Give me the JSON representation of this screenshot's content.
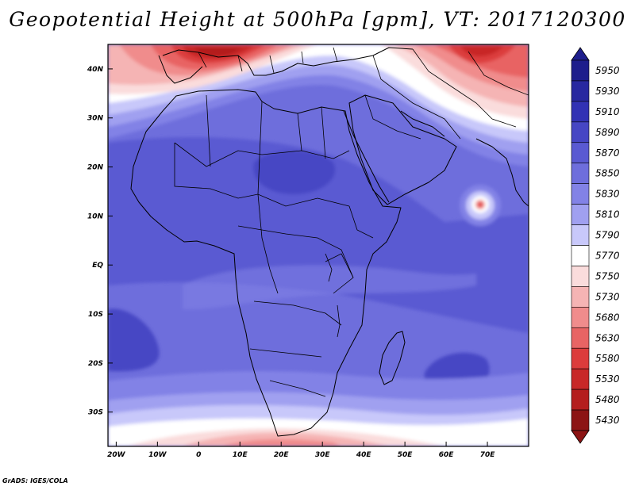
{
  "title": "Geopotential Height at 500hPa [gpm], VT: 2017120300",
  "footer": "GrADS: IGES/COLA",
  "map": {
    "lon_range": [
      -22,
      80
    ],
    "lat_range": [
      -37,
      45
    ],
    "lon_ticks": [
      {
        "value": -20,
        "label": "20W"
      },
      {
        "value": -10,
        "label": "10W"
      },
      {
        "value": 0,
        "label": "0"
      },
      {
        "value": 10,
        "label": "10E"
      },
      {
        "value": 20,
        "label": "20E"
      },
      {
        "value": 30,
        "label": "30E"
      },
      {
        "value": 40,
        "label": "40E"
      },
      {
        "value": 50,
        "label": "50E"
      },
      {
        "value": 60,
        "label": "60E"
      },
      {
        "value": 70,
        "label": "70E"
      }
    ],
    "lat_ticks": [
      {
        "value": 40,
        "label": "40N"
      },
      {
        "value": 30,
        "label": "30N"
      },
      {
        "value": 20,
        "label": "20N"
      },
      {
        "value": 10,
        "label": "10N"
      },
      {
        "value": 0,
        "label": "EQ"
      },
      {
        "value": -10,
        "label": "10S"
      },
      {
        "value": -20,
        "label": "20S"
      },
      {
        "value": -30,
        "label": "30S"
      }
    ]
  },
  "colorbar": {
    "levels": [
      "5950",
      "5930",
      "5910",
      "5890",
      "5870",
      "5850",
      "5830",
      "5810",
      "5790",
      "5770",
      "5750",
      "5730",
      "5680",
      "5630",
      "5580",
      "5530",
      "5480",
      "5430"
    ],
    "colors": [
      "#1e1e8c",
      "#2828a0",
      "#3232b4",
      "#4646c4",
      "#5a5ad2",
      "#6e6edc",
      "#8282e6",
      "#a0a0f0",
      "#c8c8fa",
      "#ffffff",
      "#fadcdc",
      "#f5b4b4",
      "#f08c8c",
      "#e86464",
      "#dc3c3c",
      "#c82828",
      "#b41e1e",
      "#8c1414"
    ]
  }
}
